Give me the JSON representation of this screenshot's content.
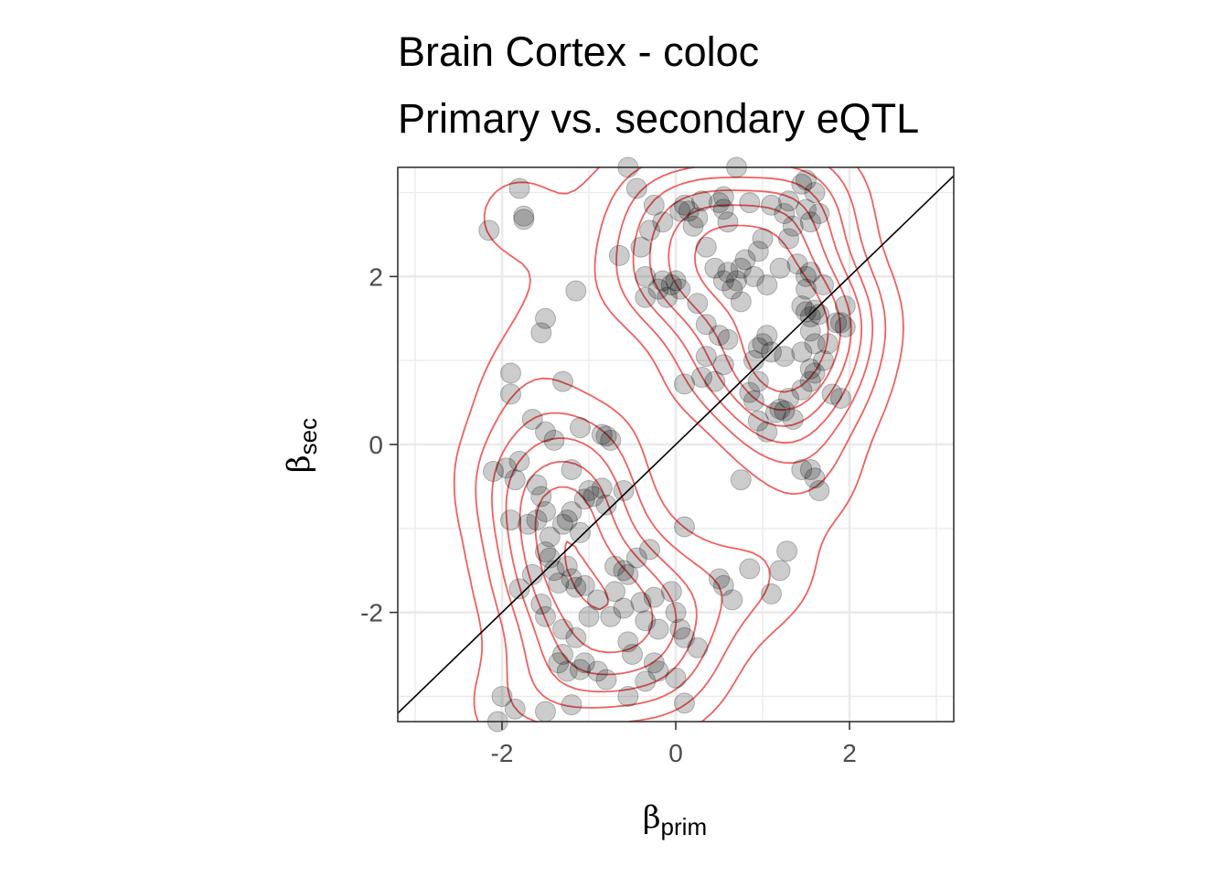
{
  "chart_data": {
    "type": "scatter",
    "title": [
      "Brain Cortex - coloc",
      "Primary vs. secondary eQTL"
    ],
    "xlabel": {
      "symbol": "β",
      "sub": "prim"
    },
    "ylabel": {
      "symbol": "β",
      "sub": "sec"
    },
    "xlim": [
      -3.2,
      3.2
    ],
    "ylim": [
      -3.3,
      3.3
    ],
    "x_ticks": [
      -2,
      0,
      2
    ],
    "y_ticks": [
      -2,
      0,
      2
    ],
    "x_tick_labels": [
      "-2",
      "0",
      "2"
    ],
    "y_tick_labels": [
      "-2",
      "0",
      "2"
    ],
    "grid": true,
    "reference_line": {
      "slope": 1,
      "intercept": 0
    },
    "overlay": "2d density contours",
    "colors": {
      "points": "#000000",
      "contour": "#f06060",
      "axis": "#333333",
      "grid": "#ebebeb"
    },
    "points": [
      [
        -2.15,
        2.55
      ],
      [
        -1.8,
        3.05
      ],
      [
        -1.75,
        2.72
      ],
      [
        -1.75,
        2.68
      ],
      [
        -1.15,
        1.83
      ],
      [
        -1.5,
        1.5
      ],
      [
        -1.55,
        1.33
      ],
      [
        -1.9,
        0.85
      ],
      [
        -1.9,
        0.6
      ],
      [
        -1.65,
        0.3
      ],
      [
        -1.3,
        0.75
      ],
      [
        -1.5,
        0.15
      ],
      [
        -1.4,
        0.05
      ],
      [
        -1.1,
        0.2
      ],
      [
        -0.85,
        0.12
      ],
      [
        -0.8,
        0.1
      ],
      [
        -0.75,
        0.05
      ],
      [
        -1.8,
        -0.2
      ],
      [
        -1.95,
        -0.28
      ],
      [
        -1.85,
        -0.42
      ],
      [
        -2.1,
        -0.32
      ],
      [
        -1.6,
        -0.48
      ],
      [
        -1.55,
        -0.62
      ],
      [
        -1.2,
        -0.3
      ],
      [
        -1.0,
        -0.55
      ],
      [
        -0.95,
        -0.62
      ],
      [
        -1.05,
        -0.65
      ],
      [
        -0.85,
        -0.52
      ],
      [
        -0.6,
        -0.55
      ],
      [
        -0.8,
        -0.72
      ],
      [
        -1.2,
        -0.8
      ],
      [
        -1.25,
        -0.9
      ],
      [
        -1.3,
        -0.95
      ],
      [
        -1.5,
        -0.8
      ],
      [
        -1.6,
        -0.9
      ],
      [
        -1.7,
        -0.95
      ],
      [
        -1.9,
        -0.9
      ],
      [
        -1.1,
        -1.05
      ],
      [
        -1.45,
        -1.1
      ],
      [
        -1.5,
        -1.28
      ],
      [
        -1.45,
        -1.35
      ],
      [
        -1.25,
        -1.45
      ],
      [
        -1.2,
        -1.6
      ],
      [
        -1.05,
        -1.68
      ],
      [
        -1.15,
        -1.7
      ],
      [
        -1.35,
        -1.65
      ],
      [
        -1.4,
        -1.5
      ],
      [
        -1.65,
        -1.55
      ],
      [
        -1.8,
        -1.72
      ],
      [
        -1.55,
        -1.9
      ],
      [
        -1.5,
        -2.05
      ],
      [
        -1.3,
        -2.2
      ],
      [
        -1.0,
        -2.05
      ],
      [
        -0.9,
        -1.85
      ],
      [
        -0.7,
        -1.45
      ],
      [
        -0.6,
        -1.5
      ],
      [
        -0.55,
        -1.55
      ],
      [
        -0.45,
        -1.35
      ],
      [
        -0.3,
        -1.25
      ],
      [
        -0.7,
        -1.75
      ],
      [
        -0.6,
        -1.95
      ],
      [
        -0.4,
        -1.88
      ],
      [
        -0.25,
        -1.82
      ],
      [
        -0.05,
        -1.75
      ],
      [
        0.0,
        -2.0
      ],
      [
        0.05,
        -2.2
      ],
      [
        -0.2,
        -2.2
      ],
      [
        -0.35,
        -2.1
      ],
      [
        -0.55,
        -2.35
      ],
      [
        -0.75,
        -2.05
      ],
      [
        -1.15,
        -2.3
      ],
      [
        -1.3,
        -2.5
      ],
      [
        -1.35,
        -2.6
      ],
      [
        -1.25,
        -2.7
      ],
      [
        -1.1,
        -2.68
      ],
      [
        -1.05,
        -2.6
      ],
      [
        -0.9,
        -2.7
      ],
      [
        -0.8,
        -2.8
      ],
      [
        -0.5,
        -2.5
      ],
      [
        -0.25,
        -2.6
      ],
      [
        -0.2,
        -2.7
      ],
      [
        -0.35,
        -2.82
      ],
      [
        0.0,
        -2.78
      ],
      [
        0.1,
        -2.3
      ],
      [
        0.25,
        -2.42
      ],
      [
        -0.55,
        -3.0
      ],
      [
        0.1,
        -3.08
      ],
      [
        -1.2,
        -3.1
      ],
      [
        -1.5,
        -3.18
      ],
      [
        -1.85,
        -3.15
      ],
      [
        -2.0,
        -3.0
      ],
      [
        -2.05,
        -3.3
      ],
      [
        0.1,
        -0.98
      ],
      [
        0.5,
        -1.6
      ],
      [
        0.55,
        -1.68
      ],
      [
        0.65,
        -1.85
      ],
      [
        0.85,
        -1.48
      ],
      [
        1.1,
        -1.78
      ],
      [
        1.2,
        -1.5
      ],
      [
        1.28,
        -1.27
      ],
      [
        0.75,
        -0.42
      ],
      [
        -0.55,
        3.3
      ],
      [
        -0.45,
        3.05
      ],
      [
        -0.25,
        2.85
      ],
      [
        -0.3,
        2.55
      ],
      [
        -0.15,
        2.65
      ],
      [
        -0.4,
        2.35
      ],
      [
        -0.65,
        2.25
      ],
      [
        -0.35,
        2.0
      ],
      [
        -0.35,
        1.75
      ],
      [
        -0.15,
        1.95
      ],
      [
        -0.2,
        1.85
      ],
      [
        -0.05,
        1.9
      ],
      [
        -0.1,
        1.75
      ],
      [
        0.05,
        1.85
      ],
      [
        0.0,
        1.95
      ],
      [
        0.25,
        1.68
      ],
      [
        0.35,
        1.43
      ],
      [
        0.5,
        1.3
      ],
      [
        0.6,
        1.25
      ],
      [
        0.55,
        0.95
      ],
      [
        0.45,
        0.75
      ],
      [
        0.1,
        0.72
      ],
      [
        0.3,
        0.8
      ],
      [
        0.45,
        2.1
      ],
      [
        0.55,
        1.95
      ],
      [
        0.65,
        1.85
      ],
      [
        0.7,
        1.95
      ],
      [
        0.75,
        2.1
      ],
      [
        0.8,
        2.2
      ],
      [
        0.6,
        2.05
      ],
      [
        0.35,
        2.35
      ],
      [
        0.05,
        2.78
      ],
      [
        0.1,
        2.85
      ],
      [
        0.2,
        2.6
      ],
      [
        0.25,
        2.7
      ],
      [
        0.3,
        2.9
      ],
      [
        0.5,
        2.88
      ],
      [
        0.55,
        2.8
      ],
      [
        0.6,
        2.65
      ],
      [
        0.7,
        3.3
      ],
      [
        0.85,
        2.88
      ],
      [
        1.0,
        2.45
      ],
      [
        0.95,
        2.3
      ],
      [
        0.9,
        2.0
      ],
      [
        1.05,
        1.9
      ],
      [
        1.2,
        2.1
      ],
      [
        1.3,
        2.45
      ],
      [
        1.4,
        2.15
      ],
      [
        1.5,
        2.0
      ],
      [
        1.55,
        2.05
      ],
      [
        1.5,
        1.85
      ],
      [
        1.7,
        1.9
      ],
      [
        1.45,
        1.65
      ],
      [
        1.5,
        1.58
      ],
      [
        1.55,
        1.52
      ],
      [
        1.6,
        1.6
      ],
      [
        1.65,
        1.55
      ],
      [
        1.55,
        1.35
      ],
      [
        1.6,
        1.2
      ],
      [
        1.7,
        1.0
      ],
      [
        1.55,
        0.9
      ],
      [
        1.6,
        0.85
      ],
      [
        1.55,
        0.75
      ],
      [
        1.45,
        0.65
      ],
      [
        1.3,
        0.55
      ],
      [
        1.25,
        0.4
      ],
      [
        1.15,
        0.38
      ],
      [
        1.2,
        0.42
      ],
      [
        1.35,
        0.3
      ],
      [
        1.05,
        0.15
      ],
      [
        0.95,
        0.28
      ],
      [
        0.9,
        0.52
      ],
      [
        0.85,
        0.62
      ],
      [
        0.95,
        0.75
      ],
      [
        0.9,
        1.0
      ],
      [
        0.95,
        1.15
      ],
      [
        1.0,
        1.2
      ],
      [
        1.25,
        1.05
      ],
      [
        1.45,
        1.1
      ],
      [
        1.75,
        1.2
      ],
      [
        1.85,
        1.45
      ],
      [
        1.9,
        1.45
      ],
      [
        1.95,
        1.4
      ],
      [
        1.95,
        1.65
      ],
      [
        1.8,
        0.6
      ],
      [
        1.9,
        0.55
      ],
      [
        1.55,
        -0.3
      ],
      [
        1.6,
        -0.4
      ],
      [
        1.65,
        -0.55
      ],
      [
        1.45,
        -0.3
      ],
      [
        1.1,
        2.85
      ],
      [
        1.3,
        2.9
      ],
      [
        1.45,
        3.1
      ],
      [
        1.5,
        3.15
      ],
      [
        1.6,
        3.0
      ],
      [
        1.5,
        2.8
      ],
      [
        1.55,
        2.65
      ],
      [
        1.65,
        2.75
      ],
      [
        1.35,
        2.6
      ],
      [
        1.25,
        2.75
      ],
      [
        0.15,
        2.78
      ],
      [
        0.55,
        2.95
      ],
      [
        1.05,
        1.3
      ],
      [
        1.1,
        1.1
      ],
      [
        0.75,
        1.7
      ],
      [
        0.35,
        1.05
      ]
    ]
  }
}
